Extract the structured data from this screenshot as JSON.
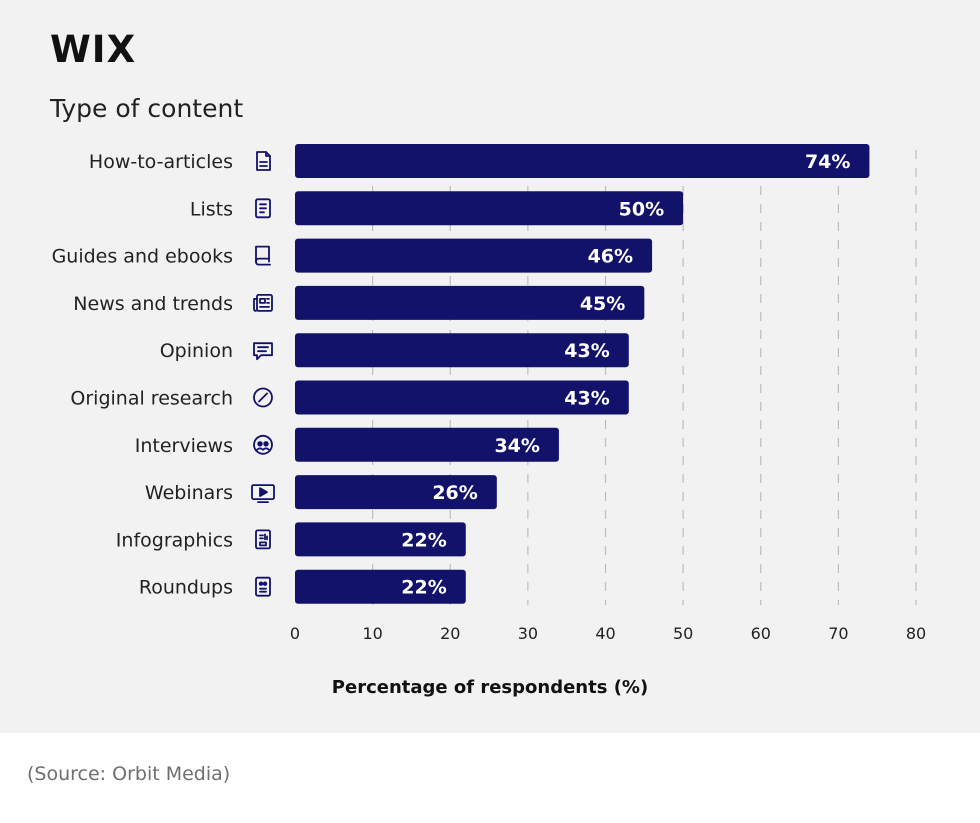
{
  "brand": {
    "logo": "WIX"
  },
  "footer": {
    "source": "(Source: Orbit Media)"
  },
  "colors": {
    "bar": "#12126b",
    "panel": "#f2f2f2",
    "grid": "#bdbdbd",
    "icon": "#12126b"
  },
  "chart_data": {
    "type": "bar",
    "orientation": "horizontal",
    "title": "Type of content",
    "xlabel": "Percentage of respondents (%)",
    "ylabel": "",
    "xlim": [
      0,
      80
    ],
    "ticks": [
      0,
      10,
      20,
      30,
      40,
      50,
      60,
      70,
      80
    ],
    "grid": true,
    "categories": [
      "How-to-articles",
      "Lists",
      "Guides and ebooks",
      "News and trends",
      "Opinion",
      "Original research",
      "Interviews",
      "Webinars",
      "Infographics",
      "Roundups"
    ],
    "icons": [
      "document-icon",
      "list-icon",
      "book-icon",
      "newspaper-icon",
      "chat-icon",
      "research-icon",
      "interviews-icon",
      "video-play-icon",
      "infographic-icon",
      "roundup-icon"
    ],
    "values": [
      74,
      50,
      46,
      45,
      43,
      43,
      34,
      26,
      22,
      22
    ],
    "value_labels": [
      "74%",
      "50%",
      "46%",
      "45%",
      "43%",
      "43%",
      "34%",
      "26%",
      "22%",
      "22%"
    ]
  }
}
